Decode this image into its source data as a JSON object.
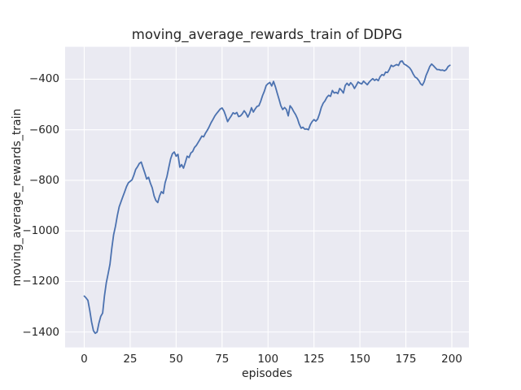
{
  "figure": {
    "title": "moving_average_rewards_train of DDPG",
    "xlabel": "episodes",
    "ylabel": "moving_average_rewards_train",
    "background_color": "#ffffff",
    "plot_background_color": "#eaeaf2",
    "grid_color": "#ffffff",
    "line_color": "#4c72b0",
    "text_color": "#262626"
  },
  "axes": {
    "x_ticks": [
      {
        "label": "0",
        "value": 0
      },
      {
        "label": "25",
        "value": 25
      },
      {
        "label": "50",
        "value": 50
      },
      {
        "label": "75",
        "value": 75
      },
      {
        "label": "100",
        "value": 100
      },
      {
        "label": "125",
        "value": 125
      },
      {
        "label": "150",
        "value": 150
      },
      {
        "label": "175",
        "value": 175
      },
      {
        "label": "200",
        "value": 200
      }
    ],
    "y_ticks": [
      {
        "label": "−400",
        "value": -400
      },
      {
        "label": "−600",
        "value": -600
      },
      {
        "label": "−800",
        "value": -800
      },
      {
        "label": "−1000",
        "value": -1000
      },
      {
        "label": "−1200",
        "value": -1200
      },
      {
        "label": "−1400",
        "value": -1400
      }
    ]
  },
  "chart_data": {
    "type": "line",
    "title": "moving_average_rewards_train of DDPG",
    "xlabel": "episodes",
    "ylabel": "moving_average_rewards_train",
    "xlim": [
      -10.4,
      209.3
    ],
    "ylim": [
      -1461,
      -272
    ],
    "grid": true,
    "legend": false,
    "x_tick_values": [
      0,
      25,
      50,
      75,
      100,
      125,
      150,
      175,
      200
    ],
    "y_tick_values": [
      -400,
      -600,
      -800,
      -1000,
      -1200,
      -1400
    ],
    "series": [
      {
        "name": "moving_average_rewards_train",
        "x_start": 0,
        "x_step": 1,
        "values": [
          -1258,
          -1265,
          -1275,
          -1315,
          -1360,
          -1395,
          -1405,
          -1400,
          -1365,
          -1338,
          -1325,
          -1258,
          -1205,
          -1170,
          -1132,
          -1070,
          -1015,
          -981,
          -940,
          -905,
          -885,
          -865,
          -846,
          -825,
          -810,
          -804,
          -798,
          -780,
          -757,
          -746,
          -733,
          -728,
          -750,
          -772,
          -795,
          -788,
          -812,
          -830,
          -862,
          -880,
          -888,
          -862,
          -845,
          -852,
          -810,
          -785,
          -750,
          -715,
          -695,
          -688,
          -705,
          -697,
          -748,
          -738,
          -752,
          -730,
          -705,
          -710,
          -692,
          -686,
          -670,
          -662,
          -650,
          -638,
          -625,
          -628,
          -613,
          -602,
          -588,
          -572,
          -560,
          -546,
          -536,
          -527,
          -518,
          -514,
          -526,
          -545,
          -568,
          -556,
          -545,
          -533,
          -537,
          -532,
          -548,
          -545,
          -537,
          -525,
          -535,
          -550,
          -535,
          -513,
          -530,
          -518,
          -508,
          -505,
          -488,
          -465,
          -448,
          -425,
          -418,
          -413,
          -427,
          -409,
          -430,
          -455,
          -480,
          -505,
          -520,
          -512,
          -520,
          -545,
          -505,
          -515,
          -528,
          -540,
          -556,
          -578,
          -594,
          -590,
          -598,
          -597,
          -600,
          -580,
          -568,
          -560,
          -566,
          -558,
          -537,
          -512,
          -495,
          -486,
          -472,
          -464,
          -468,
          -445,
          -455,
          -452,
          -457,
          -437,
          -444,
          -455,
          -425,
          -416,
          -425,
          -414,
          -422,
          -437,
          -425,
          -411,
          -416,
          -419,
          -408,
          -415,
          -422,
          -412,
          -404,
          -398,
          -405,
          -400,
          -406,
          -390,
          -382,
          -385,
          -372,
          -374,
          -362,
          -345,
          -350,
          -346,
          -342,
          -346,
          -330,
          -328,
          -340,
          -344,
          -349,
          -355,
          -365,
          -380,
          -392,
          -396,
          -405,
          -418,
          -424,
          -410,
          -385,
          -368,
          -350,
          -340,
          -347,
          -355,
          -362,
          -362,
          -365,
          -364,
          -367,
          -362,
          -350,
          -345
        ]
      }
    ]
  }
}
